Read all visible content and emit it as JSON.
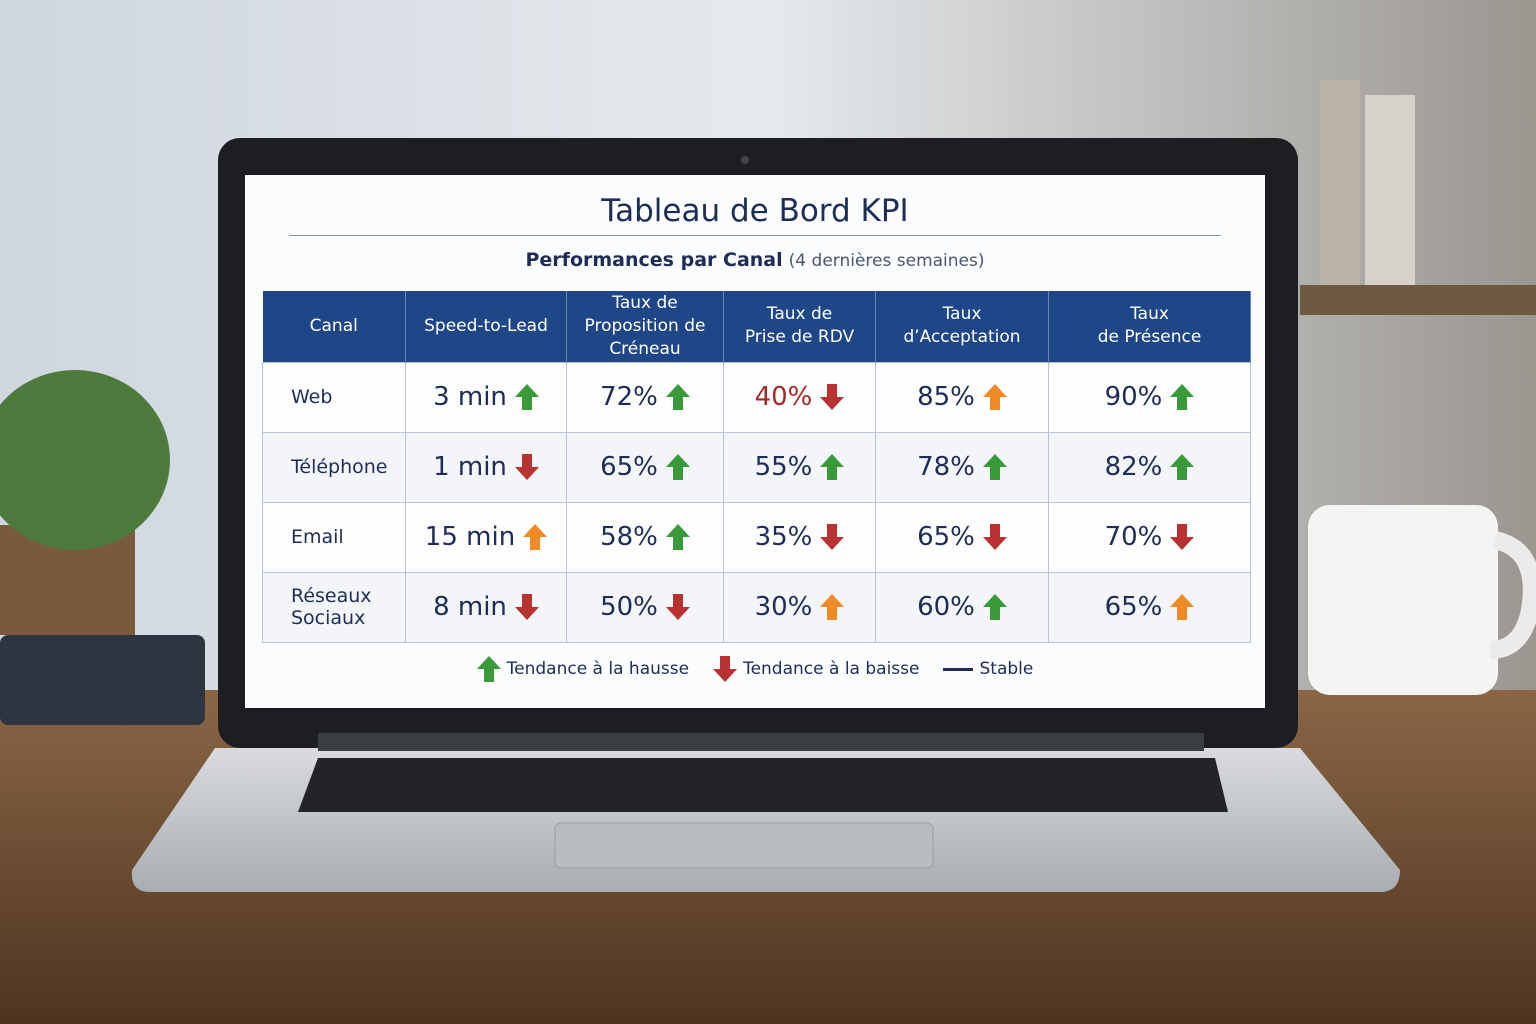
{
  "title": "Tableau de Bord KPI",
  "subtitle": {
    "main": "Performances par Canal",
    "period": "(4 dernières semaines)"
  },
  "table": {
    "headers": [
      "Canal",
      "Speed-to-Lead",
      "Taux de\nProposition de Créneau",
      "Taux de\nPrise de RDV",
      "Taux\nd’Acceptation",
      "Taux\nde Présence"
    ],
    "rows": [
      {
        "label": "Web",
        "cells": [
          {
            "text": "3 min",
            "trend": "up",
            "arrow": "#3a9a3a"
          },
          {
            "text": "72%",
            "trend": "up",
            "arrow": "#3a9a3a"
          },
          {
            "text": "40%",
            "trend": "down",
            "arrow": "#b83232",
            "color": "#a02a2a"
          },
          {
            "text": "85%",
            "trend": "up",
            "arrow": "#f08a24"
          },
          {
            "text": "90%",
            "trend": "up",
            "arrow": "#3a9a3a"
          }
        ]
      },
      {
        "label": "Téléphone",
        "cells": [
          {
            "text": "1 min",
            "trend": "down",
            "arrow": "#b83232"
          },
          {
            "text": "65%",
            "trend": "up",
            "arrow": "#3a9a3a"
          },
          {
            "text": "55%",
            "trend": "up",
            "arrow": "#3a9a3a"
          },
          {
            "text": "78%",
            "trend": "up",
            "arrow": "#3a9a3a"
          },
          {
            "text": "82%",
            "trend": "up",
            "arrow": "#3a9a3a"
          }
        ]
      },
      {
        "label": "Email",
        "cells": [
          {
            "text": "15 min",
            "trend": "up",
            "arrow": "#f08a24"
          },
          {
            "text": "58%",
            "trend": "up",
            "arrow": "#3a9a3a"
          },
          {
            "text": "35%",
            "trend": "down",
            "arrow": "#b83232"
          },
          {
            "text": "65%",
            "trend": "down",
            "arrow": "#b83232"
          },
          {
            "text": "70%",
            "trend": "down",
            "arrow": "#b83232"
          }
        ]
      },
      {
        "label": "Réseaux\nSociaux",
        "cells": [
          {
            "text": "8 min",
            "trend": "down",
            "arrow": "#b83232"
          },
          {
            "text": "50%",
            "trend": "down",
            "arrow": "#b83232"
          },
          {
            "text": "30%",
            "trend": "up",
            "arrow": "#f08a24"
          },
          {
            "text": "60%",
            "trend": "up",
            "arrow": "#3a9a3a"
          },
          {
            "text": "65%",
            "trend": "up",
            "arrow": "#f08a24"
          }
        ]
      }
    ]
  },
  "legend": [
    {
      "label": "Tendance à la hausse",
      "symbol": "up",
      "color": "#3a9a3a"
    },
    {
      "label": "Tendance à la baisse",
      "symbol": "down",
      "color": "#b83232"
    },
    {
      "label": "Stable",
      "symbol": "line",
      "color": "#1d2d55"
    }
  ]
}
